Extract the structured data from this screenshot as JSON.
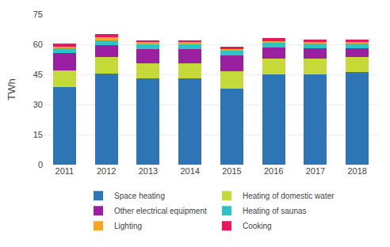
{
  "chart_data": {
    "type": "bar",
    "stacked": true,
    "categories": [
      "2011",
      "2012",
      "2013",
      "2014",
      "2015",
      "2016",
      "2017",
      "2018"
    ],
    "series": [
      {
        "name": "Space heating",
        "color": "#2e75b6",
        "values": [
          38.5,
          45.5,
          43.0,
          43.0,
          38.0,
          45.0,
          45.0,
          46.0
        ]
      },
      {
        "name": "Heating of domestic water",
        "color": "#c5d938",
        "values": [
          8.5,
          8.0,
          7.5,
          7.5,
          8.5,
          8.0,
          8.0,
          7.5
        ]
      },
      {
        "name": "Other electrical equipment",
        "color": "#9b1fa1",
        "values": [
          8.5,
          6.0,
          7.0,
          7.0,
          8.0,
          5.5,
          5.0,
          4.5
        ]
      },
      {
        "name": "Heating of saunas",
        "color": "#2ec4c4",
        "values": [
          2.5,
          2.5,
          2.5,
          2.5,
          2.5,
          2.5,
          2.5,
          2.5
        ]
      },
      {
        "name": "Lighting",
        "color": "#f5a623",
        "values": [
          1.0,
          1.5,
          1.0,
          1.0,
          0.5,
          0.5,
          0.5,
          0.5
        ]
      },
      {
        "name": "Cooking",
        "color": "#e8185e",
        "values": [
          1.5,
          1.5,
          1.0,
          1.0,
          1.5,
          1.5,
          1.5,
          1.5
        ]
      }
    ],
    "ylabel": "TWh",
    "ylim": [
      0,
      75
    ],
    "yticks": [
      0,
      15,
      30,
      45,
      60,
      75
    ],
    "grid": true,
    "legend": "bottom"
  }
}
